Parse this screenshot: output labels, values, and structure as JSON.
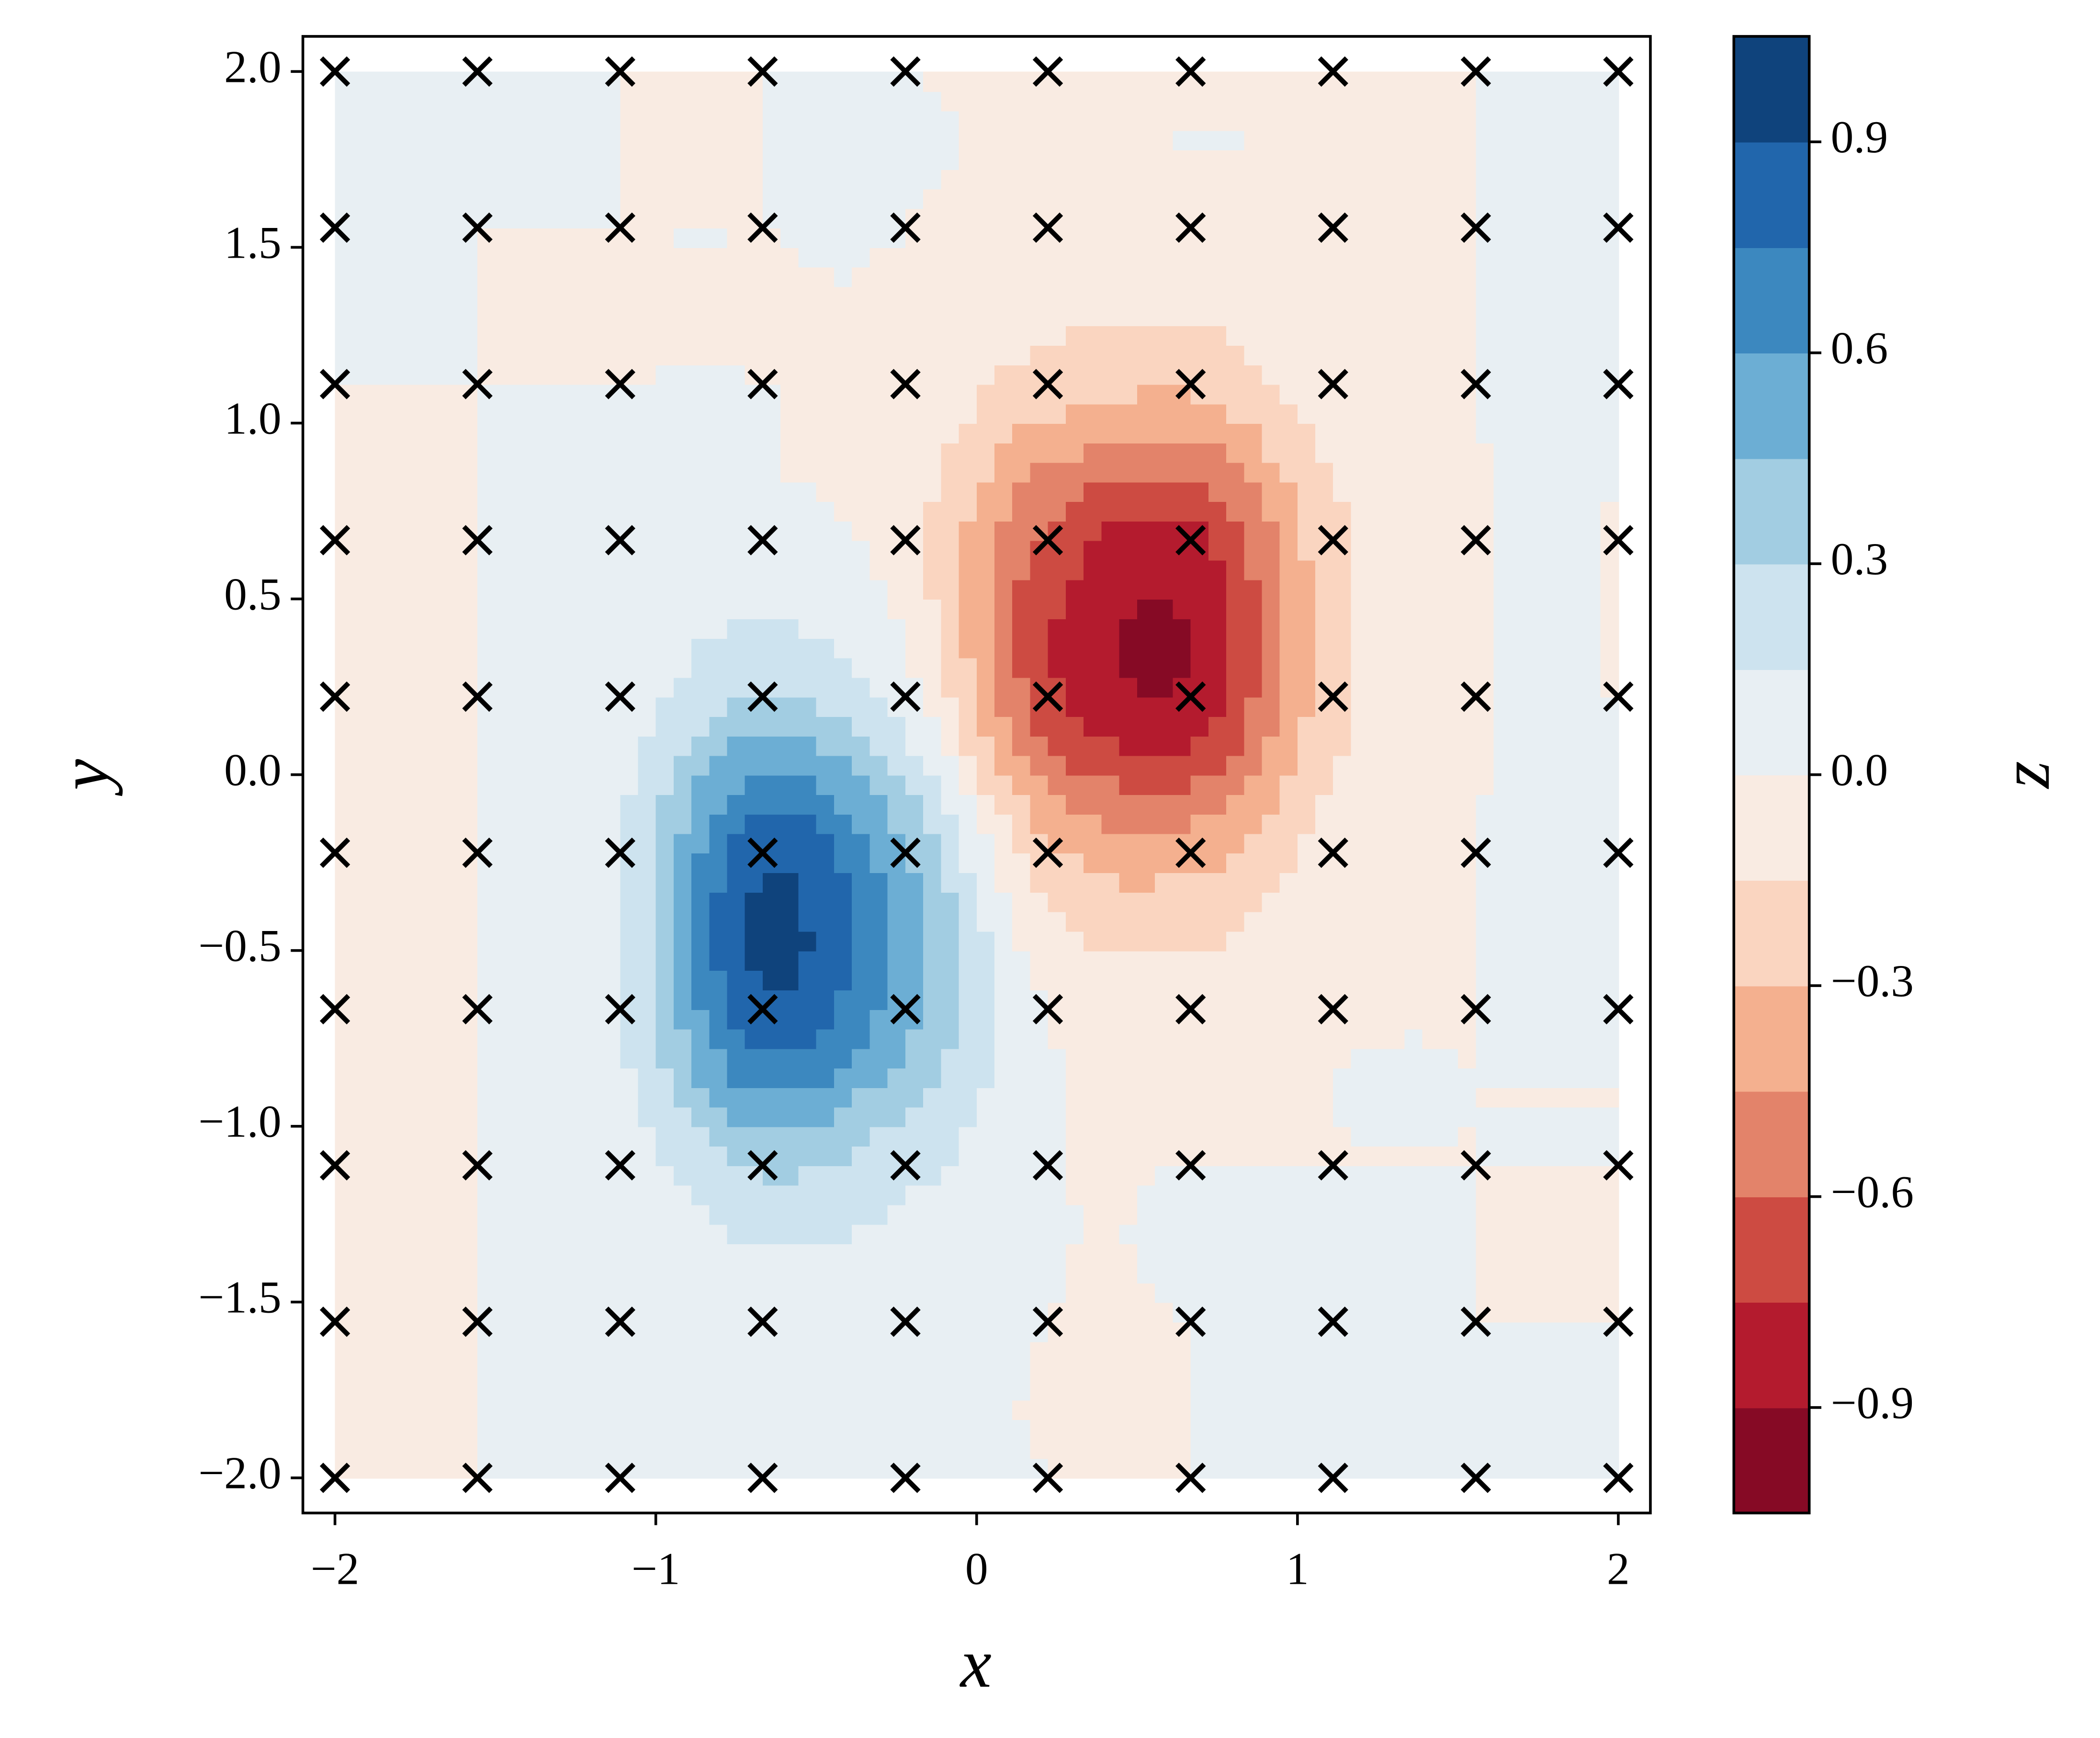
{
  "chart_data": {
    "type": "contour",
    "x_label": "x",
    "y_label": "y",
    "colorbar_label": "z",
    "x": [
      -2,
      -1.556,
      -1.111,
      -0.667,
      -0.222,
      0.222,
      0.667,
      1.111,
      1.556,
      2
    ],
    "y": [
      -2,
      -1.556,
      -1.111,
      -0.667,
      -0.222,
      0.222,
      0.667,
      1.111,
      1.556,
      2
    ],
    "z": [
      [
        0,
        0,
        0,
        0,
        0,
        0,
        0,
        0,
        0,
        0
      ],
      [
        0,
        0,
        0.01,
        0.05,
        0.03,
        0,
        0,
        0,
        0,
        0
      ],
      [
        0,
        0,
        0.06,
        0.33,
        0.2,
        0.01,
        0,
        0,
        0,
        0
      ],
      [
        0,
        0,
        0.16,
        0.87,
        0.51,
        -0.01,
        -0.06,
        -0.01,
        0,
        0
      ],
      [
        0,
        0,
        0.16,
        0.86,
        0.46,
        -0.26,
        -0.36,
        -0.09,
        0,
        0
      ],
      [
        0,
        0,
        0.06,
        0.32,
        0.07,
        -0.7,
        -0.86,
        -0.21,
        -0.01,
        0
      ],
      [
        0,
        0,
        0.01,
        0.04,
        -0.08,
        -0.64,
        -0.79,
        -0.19,
        -0.01,
        0
      ],
      [
        0,
        0,
        0,
        0,
        -0.03,
        -0.22,
        -0.27,
        -0.07,
        0,
        0
      ],
      [
        0,
        0,
        0,
        0,
        0,
        -0.03,
        -0.03,
        -0.01,
        0,
        0
      ],
      [
        0,
        0,
        0,
        0,
        0,
        0,
        0,
        0,
        0,
        0
      ]
    ],
    "levels": [
      -1.05,
      -0.9,
      -0.75,
      -0.6,
      -0.45,
      -0.3,
      -0.15,
      0,
      0.15,
      0.3,
      0.45,
      0.6,
      0.75,
      0.9,
      1.05
    ],
    "colors": [
      "#860a25",
      "#b41b2e",
      "#cd4b42",
      "#e3836a",
      "#f4b08f",
      "#fad5c0",
      "#f9ebe2",
      "#e8eff3",
      "#cde3ef",
      "#a2cde2",
      "#6caed4",
      "#3c88bf",
      "#2166ac",
      "#0f437c"
    ],
    "marker_color": "#000000",
    "xlim": [
      -2.1,
      2.1
    ],
    "ylim": [
      -2.1,
      2.1
    ],
    "xticks": [
      {
        "value": -2,
        "label": "−2"
      },
      {
        "value": -1,
        "label": "−1"
      },
      0,
      1,
      2
    ],
    "yticks": [
      {
        "value": -2,
        "label": "−2.0"
      },
      {
        "value": -1.5,
        "label": "−1.5"
      },
      {
        "value": -1,
        "label": "−1.0"
      },
      {
        "value": -0.5,
        "label": "−0.5"
      },
      {
        "value": 0,
        "label": "0.0"
      },
      0.5,
      {
        "value": 1,
        "label": "1.0"
      },
      1.5,
      {
        "value": 2,
        "label": "2.0"
      }
    ],
    "colorbar_lim": [
      -1.05,
      1.05
    ],
    "colorbar_ticks": [
      {
        "value": -0.9,
        "label": "−0.9"
      },
      {
        "value": -0.6,
        "label": "−0.6"
      },
      {
        "value": -0.3,
        "label": "−0.3"
      },
      {
        "value": 0,
        "label": "0.0"
      },
      0.3,
      0.6,
      0.9
    ]
  }
}
